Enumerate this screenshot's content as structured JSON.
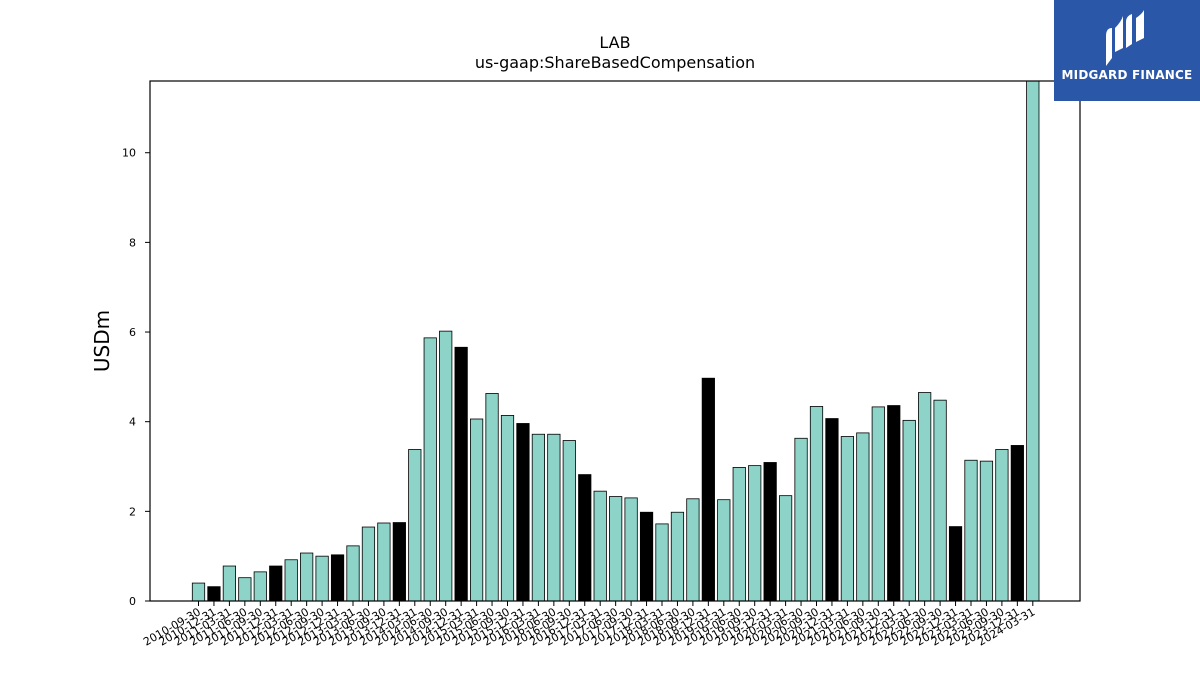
{
  "brand": {
    "name": "MIDGARD FINANCE",
    "bg_color": "#2a57a8"
  },
  "chart_data": {
    "type": "bar",
    "title": "LAB",
    "subtitle": "us-gaap:ShareBasedCompensation",
    "ylabel": "USDm",
    "xlabel": "",
    "ylim": [
      0,
      11.6
    ],
    "yticks": [
      0,
      2,
      4,
      6,
      8,
      10
    ],
    "grid": false,
    "colors": {
      "quarterly": "#8dd3c7",
      "year_end": "#000000",
      "edge": "#000000"
    },
    "categories": [
      "2010-09-30",
      "2010-12-31",
      "2011-03-31",
      "2011-06-30",
      "2011-09-30",
      "2011-12-31",
      "2012-03-31",
      "2012-06-30",
      "2012-09-30",
      "2012-12-31",
      "2013-03-31",
      "2013-06-30",
      "2013-09-30",
      "2013-12-31",
      "2014-03-31",
      "2014-06-30",
      "2014-09-30",
      "2014-12-31",
      "2015-03-31",
      "2015-06-30",
      "2015-09-30",
      "2015-12-31",
      "2016-03-31",
      "2016-06-30",
      "2016-09-30",
      "2016-12-31",
      "2017-03-31",
      "2017-06-30",
      "2017-09-30",
      "2017-12-31",
      "2018-03-31",
      "2018-06-30",
      "2018-09-30",
      "2018-12-31",
      "2019-03-31",
      "2019-06-30",
      "2019-09-30",
      "2019-12-31",
      "2020-03-31",
      "2020-06-30",
      "2020-09-30",
      "2020-12-31",
      "2021-03-31",
      "2021-06-30",
      "2021-09-30",
      "2021-12-31",
      "2022-03-31",
      "2022-06-30",
      "2022-09-30",
      "2022-12-31",
      "2023-03-31",
      "2023-06-30",
      "2023-09-30",
      "2023-12-31",
      "2024-03-31"
    ],
    "values": [
      0.4,
      0.32,
      0.78,
      0.52,
      0.65,
      0.78,
      0.92,
      1.07,
      1.0,
      1.03,
      1.23,
      1.65,
      1.74,
      1.75,
      3.38,
      5.87,
      6.02,
      5.66,
      4.06,
      4.63,
      4.14,
      3.96,
      3.72,
      3.72,
      3.58,
      2.82,
      2.45,
      2.33,
      2.3,
      1.98,
      1.72,
      1.98,
      2.28,
      4.97,
      2.26,
      2.98,
      3.02,
      3.09,
      2.35,
      3.63,
      4.34,
      4.07,
      3.67,
      3.75,
      4.33,
      4.36,
      4.03,
      4.65,
      4.48,
      1.66,
      3.14,
      3.12,
      3.38,
      3.47,
      11.6
    ],
    "year_end_flags": [
      0,
      1,
      0,
      0,
      0,
      1,
      0,
      0,
      0,
      1,
      0,
      0,
      0,
      1,
      0,
      0,
      0,
      1,
      0,
      0,
      0,
      1,
      0,
      0,
      0,
      1,
      0,
      0,
      0,
      1,
      0,
      0,
      0,
      1,
      0,
      0,
      0,
      1,
      0,
      0,
      0,
      1,
      0,
      0,
      0,
      1,
      0,
      0,
      0,
      1,
      0,
      0,
      0,
      1,
      0
    ]
  }
}
